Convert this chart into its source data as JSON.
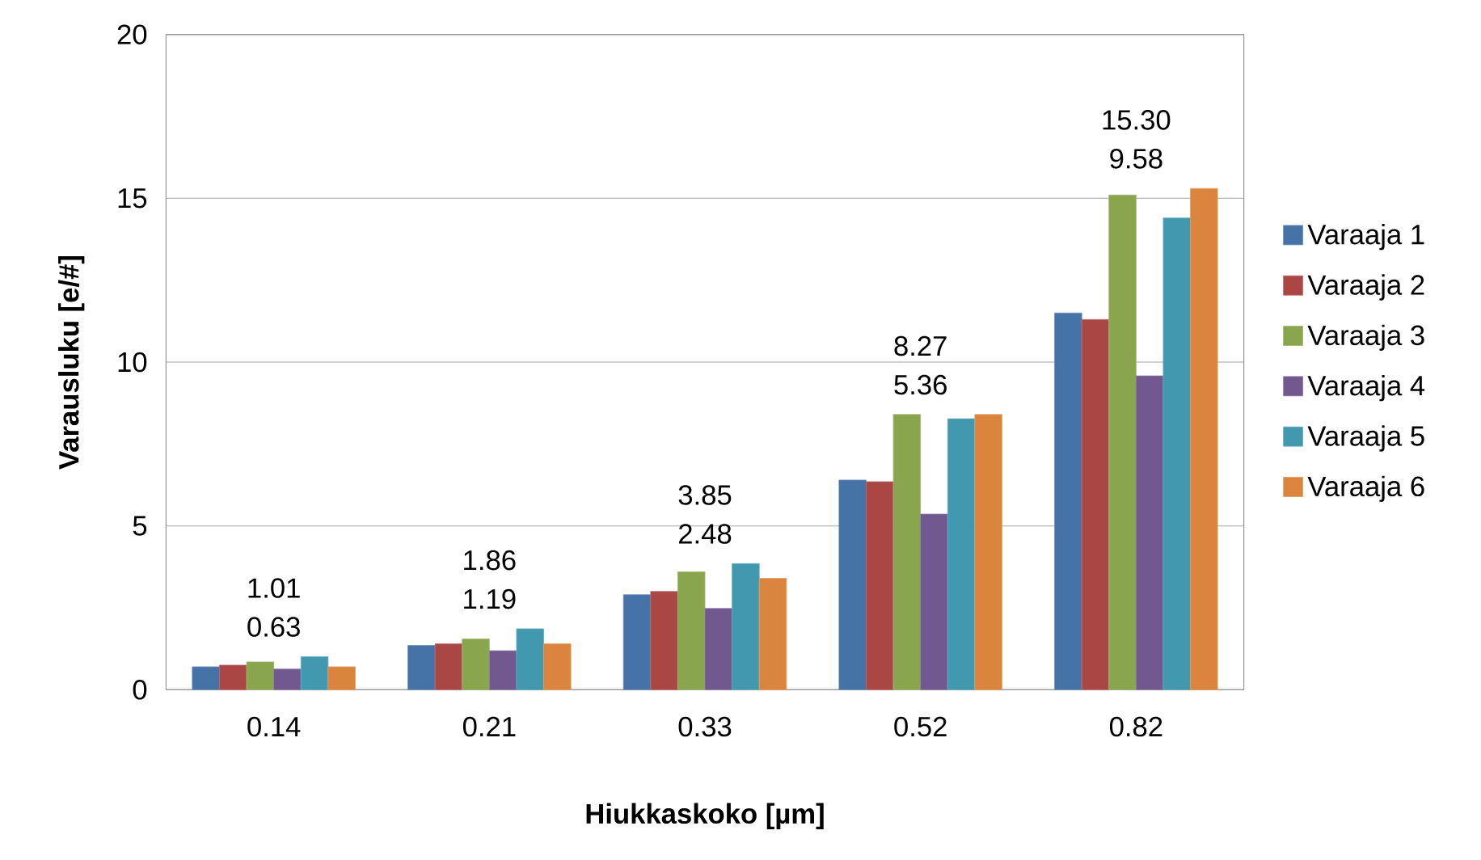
{
  "chart_data": {
    "type": "bar",
    "xlabel": "Hiukkaskoko [µm]",
    "ylabel": "Varausluku [e/#]",
    "categories": [
      "0.14",
      "0.21",
      "0.33",
      "0.52",
      "0.82"
    ],
    "series": [
      {
        "name": "Varaaja 1",
        "color": "#4572a7",
        "values": [
          0.7,
          1.35,
          2.9,
          6.4,
          11.5
        ]
      },
      {
        "name": "Varaaja 2",
        "color": "#aa4643",
        "values": [
          0.75,
          1.4,
          3.0,
          6.35,
          11.3
        ]
      },
      {
        "name": "Varaaja 3",
        "color": "#89a54e",
        "values": [
          0.85,
          1.55,
          3.6,
          8.4,
          15.1
        ]
      },
      {
        "name": "Varaaja 4",
        "color": "#71588f",
        "values": [
          0.63,
          1.19,
          2.48,
          5.36,
          9.58
        ]
      },
      {
        "name": "Varaaja 5",
        "color": "#4198af",
        "values": [
          1.01,
          1.86,
          3.85,
          8.27,
          14.4
        ]
      },
      {
        "name": "Varaaja 6",
        "color": "#db843d",
        "values": [
          0.7,
          1.4,
          3.4,
          8.4,
          15.3
        ]
      }
    ],
    "ylim": [
      0,
      20
    ],
    "yticks": [
      0,
      5,
      10,
      15,
      20
    ],
    "grid": "y",
    "legend": "right",
    "annotations": [
      "1.01",
      "0.63",
      "1.86",
      "1.19",
      "3.85",
      "2.48",
      "8.27",
      "5.36",
      "15.30",
      "9.58"
    ]
  }
}
